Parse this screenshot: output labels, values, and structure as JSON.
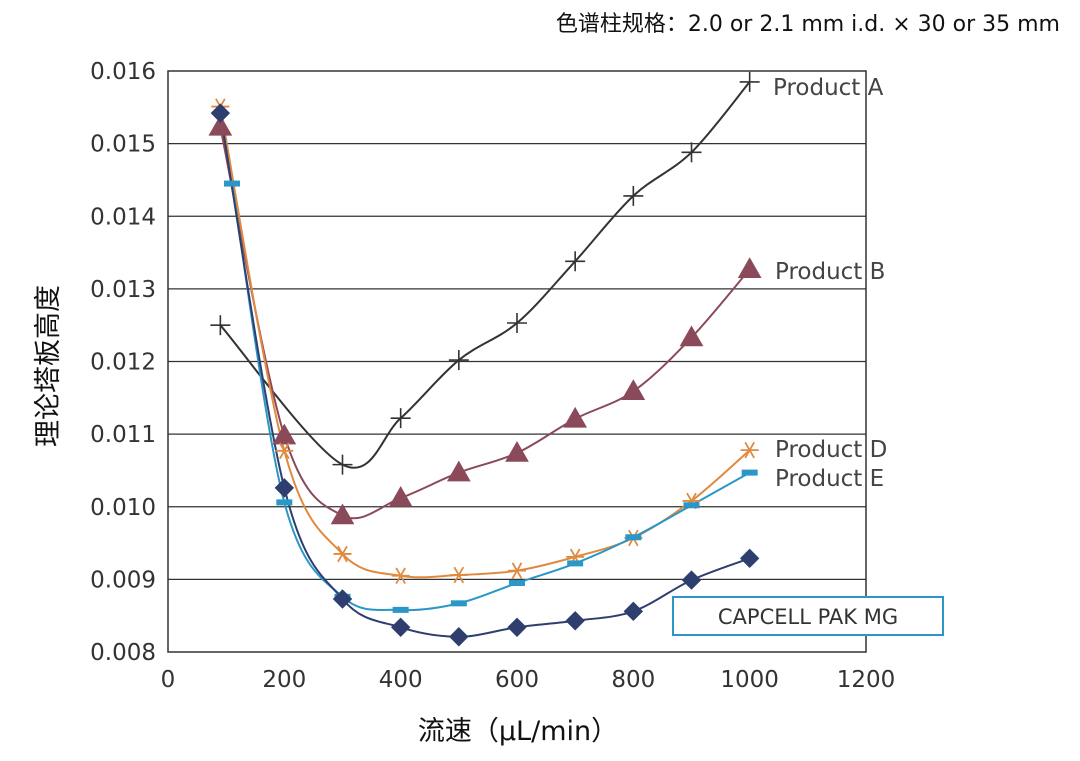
{
  "chart_data": {
    "type": "line",
    "title": "色谱柱规格：2.0 or 2.1 mm i.d. × 30 or 35 mm",
    "xlabel": "流速（μL/min）",
    "ylabel": "理论塔板高度",
    "xlim": [
      0,
      1200
    ],
    "ylim": [
      0.008,
      0.016
    ],
    "xticks": [
      0,
      200,
      400,
      600,
      800,
      1000,
      1200
    ],
    "xtick_labels": [
      "0",
      "200",
      "400",
      "600",
      "800",
      "1000",
      "1200"
    ],
    "yticks": [
      0.008,
      0.009,
      0.01,
      0.011,
      0.012,
      0.013,
      0.014,
      0.015,
      0.016
    ],
    "ytick_labels": [
      "0.008",
      "0.009",
      "0.010",
      "0.011",
      "0.012",
      "0.013",
      "0.014",
      "0.015",
      "0.016"
    ],
    "grid": "horizontal",
    "legend": "inline-right",
    "series": [
      {
        "name": "Product A",
        "marker": "plus",
        "color": "#333333",
        "x": [
          90,
          300,
          400,
          500,
          600,
          700,
          800,
          900,
          1000
        ],
        "y": [
          0.0125,
          0.01058,
          0.01122,
          0.01202,
          0.01253,
          0.01338,
          0.01428,
          0.01488,
          0.01585
        ]
      },
      {
        "name": "Product B",
        "marker": "triangle",
        "color": "#8b4a5a",
        "x": [
          90,
          200,
          300,
          400,
          500,
          600,
          700,
          800,
          900,
          1000
        ],
        "y": [
          0.01523,
          0.01098,
          0.00988,
          0.01012,
          0.01047,
          0.01074,
          0.01121,
          0.01159,
          0.01233,
          0.01327
        ]
      },
      {
        "name": "Product D",
        "marker": "asterisk",
        "color": "#e08a40",
        "x": [
          90,
          200,
          300,
          400,
          500,
          600,
          700,
          800,
          900,
          1000
        ],
        "y": [
          0.01551,
          0.01077,
          0.00935,
          0.00905,
          0.00906,
          0.00912,
          0.00931,
          0.00957,
          0.01008,
          0.01078
        ]
      },
      {
        "name": "Product E",
        "marker": "dash",
        "color": "#2a97c6",
        "x": [
          110,
          200,
          300,
          400,
          500,
          600,
          700,
          800,
          900,
          1000
        ],
        "y": [
          0.01445,
          0.01006,
          0.00876,
          0.00858,
          0.00867,
          0.00895,
          0.00922,
          0.00958,
          0.01002,
          0.01047
        ]
      },
      {
        "name": "CAPCELL PAK MG",
        "marker": "diamond",
        "color": "#2e3f6f",
        "x": [
          90,
          200,
          300,
          400,
          500,
          600,
          700,
          800,
          900,
          1000
        ],
        "y": [
          0.01542,
          0.01026,
          0.00873,
          0.00834,
          0.00821,
          0.00834,
          0.00843,
          0.00856,
          0.00899,
          0.00929
        ]
      }
    ]
  }
}
